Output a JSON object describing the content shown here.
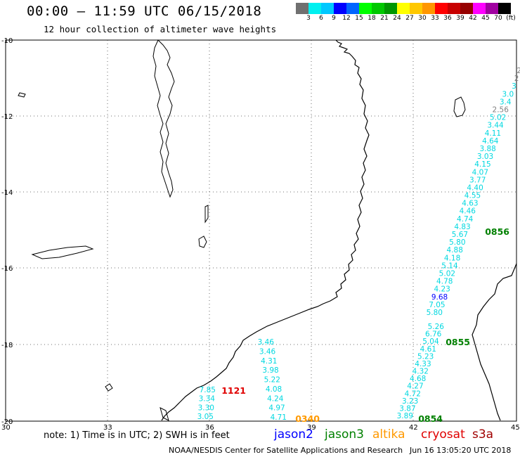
{
  "header": {
    "title": "00:00 – 11:59 UTC 06/15/2018",
    "subtitle": "12 hour collection of altimeter wave heights"
  },
  "legend": {
    "colors": [
      "#707070",
      "#00f0f0",
      "#00c8ff",
      "#0000ff",
      "#0064ff",
      "#00ff00",
      "#00c800",
      "#009600",
      "#ffff00",
      "#ffc800",
      "#ff9600",
      "#ff0000",
      "#c80000",
      "#960000",
      "#ff00ff",
      "#a000a0",
      "#000000"
    ],
    "labels": [
      "3",
      "6",
      "9",
      "12",
      "15",
      "18",
      "21",
      "24",
      "27",
      "30",
      "33",
      "36",
      "39",
      "42",
      "45",
      "70",
      "(ft)"
    ]
  },
  "axes": {
    "lat_labels": [
      "-10",
      "-12",
      "-14",
      "-16",
      "-18",
      "-20"
    ],
    "lon_labels": [
      "30",
      "33",
      "36",
      "39",
      "42",
      "45"
    ]
  },
  "colors": {
    "cyan": "#00d8e0",
    "blue": "#0000ff",
    "green": "#008000",
    "orange": "#ff9900",
    "red": "#e00000",
    "gray": "#808080"
  },
  "track_labels": [
    {
      "text": "0856",
      "color": "green"
    },
    {
      "text": "0855",
      "color": "green"
    },
    {
      "text": "0854",
      "color": "green"
    },
    {
      "text": "0340",
      "color": "orange"
    },
    {
      "text": "1121",
      "color": "red"
    }
  ],
  "values_track_east": [
    "2",
    "2",
    "3",
    "3.0",
    "3.4",
    "2.56",
    "5.02",
    "3.44",
    "4.11",
    "4.64",
    "3.88",
    "3.03",
    "4.15",
    "4.07",
    "3.77",
    "4.40",
    "4.55",
    "4.63",
    "4.46",
    "4.74",
    "4.83",
    "5.67",
    "5.80",
    "4.88",
    "4.18",
    "5.14",
    "5.02",
    "4.78",
    "4.23",
    "9.68",
    "7.05",
    "5.80"
  ],
  "values_track_mid": [
    "5.26",
    "6.76",
    "5.04",
    "4.61",
    "5.23",
    "4.33",
    "4.32",
    "4.68",
    "4.27",
    "4.72",
    "3.23",
    "3.87",
    "3.89"
  ],
  "values_track_west": [
    "3.46",
    "3.46",
    "4.31",
    "3.98",
    "5.22",
    "4.08",
    "4.24",
    "4.97",
    "4.71"
  ],
  "values_track_sw": [
    "7.85",
    "3.34",
    "3.30",
    "3.05"
  ],
  "footer": {
    "note": "note:  1) Time is in UTC;  2) SWH is in feet",
    "satellites": [
      {
        "name": "jason2",
        "color": "#0000ff"
      },
      {
        "name": "jason3",
        "color": "#008000"
      },
      {
        "name": "altika",
        "color": "#ff9900"
      },
      {
        "name": "cryosat",
        "color": "#e00000"
      },
      {
        "name": "s3a",
        "color": "#a00000"
      }
    ],
    "credit": "NOAA/NESDIS Center for Satellite Applications and Research",
    "timestamp": "Jun 16 13:05:20 UTC 2018"
  }
}
